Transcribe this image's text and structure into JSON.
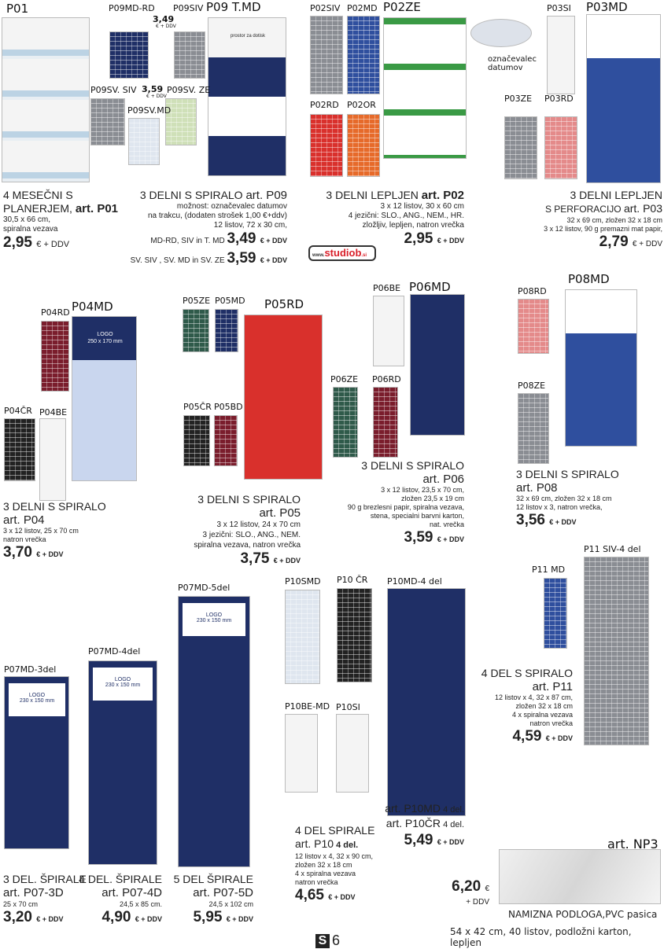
{
  "labels": {
    "p01": "P01",
    "p09mdrd": "P09MD-RD",
    "p09siv": "P09SIV",
    "p09tmd": "P09 T.MD",
    "p09svsiv": "P09SV. SIV",
    "p09svze": "P09SV. ZE",
    "p09svmd": "P09SV.MD",
    "p349": "3,49",
    "p359": "3,59",
    "ddv_small": "€ + DDV",
    "p02siv": "P02SIV",
    "p02md": "P02MD",
    "p02ze": "P02ZE",
    "p02rd": "P02RD",
    "p02or": "P02OR",
    "p03si": "P03SI",
    "p03md": "P03MD",
    "marker": "označevalec datumov",
    "p03ze": "P03ZE",
    "p03rd": "P03RD",
    "p04rd": "P04RD",
    "p04md": "P04MD",
    "p04cr": "P04ČR",
    "p04be": "P04BE",
    "p05ze": "P05ZE",
    "p05md": "P05MD",
    "p05rd": "P05RD",
    "p05cr": "P05ČR",
    "p05bd": "P05BD",
    "p06be": "P06BE",
    "p06md": "P06MD",
    "p06ze": "P06ZE",
    "p06rd": "P06RD",
    "p08rd": "P08RD",
    "p08md": "P08MD",
    "p08ze": "P08ZE",
    "p07md3": "P07MD-3del",
    "p07md4": "P07MD-4del",
    "p07md5": "P07MD-5del",
    "p10smd": "P10SMD",
    "p10cr": "P10 ČR",
    "p10md4": "P10MD-4 del",
    "p10bemd": "P10BE-MD",
    "p10si": "P10SI",
    "p11md": "P11 MD",
    "p11siv": "P11 SIV-4 del",
    "np3": "art. NP3"
  },
  "calendar_texts": {
    "logo": "LOGO",
    "logo_p04": "250 x 170 mm",
    "logo_p07": "230 x 150 mm",
    "prostor": "prostor za dotisk"
  },
  "logo": {
    "prefix": "www.",
    "name": "studiob",
    "suffix": ".si"
  },
  "products": {
    "p01": {
      "l1": "4 MESEČNI S",
      "l2": "PLANERJEM, ",
      "art": "art. P01",
      "d": [
        "30,5 x 66 cm,",
        "spiralna vezava"
      ],
      "price": "2,95",
      "unit": "€ + DDV"
    },
    "p09": {
      "title": "3 DELNI S SPIRALO ",
      "art": "art. P09",
      "d": [
        "možnost: označevalec datumov",
        "na trakcu, (dodaten  strošek 1,00 €+ddv)",
        "12 listov, 72 x 30 cm,"
      ],
      "v1": "MD-RD, SIV in T. MD ",
      "price1": "3,49",
      "v2": "SV. SIV , SV. MD in SV. ZE ",
      "price2": "3,59",
      "unit": "€ + DDV"
    },
    "p02": {
      "title": "3 DELNI LEPLJEN ",
      "art": "art. P02",
      "d": [
        "3 x 12 listov, 30 x 60 cm",
        "4 jezični: SLO., ANG., NEM., HR.",
        "zložljiv, lepljen, natron vrečka"
      ],
      "price": "2,95",
      "unit": "€ + DDV"
    },
    "p03": {
      "title": "3 DELNI LEPLJEN",
      "l2": "S PERFORACIJO ",
      "art": "art. P03",
      "d": [
        "32 x 69 cm, zložen 32 x 18 cm",
        "3 x 12 listov, 90 g premazni mat papir,"
      ],
      "price": "2,79",
      "unit": "€ + DDV"
    },
    "p04": {
      "title": "3 DELNI S SPIRALO",
      "art": "art. P04",
      "d": [
        "3 x 12 listov, 25 x 70 cm",
        "  natron vrečka"
      ],
      "price": "3,70",
      "unit": "€ + DDV"
    },
    "p05": {
      "title": "3 DELNI S SPIRALO",
      "art": "art. P05",
      "d": [
        "3 x 12 listov, 24 x 70 cm",
        "3 jezični: SLO., ANG., NEM.",
        "spiralna vezava,  natron vrečka"
      ],
      "price": "3,75",
      "unit": "€ + DDV"
    },
    "p06": {
      "title": "3 DELNI S SPIRALO",
      "art": "art. P06",
      "d": [
        "3 x 12 listov, 23,5 x 70 cm,",
        "zložen 23,5 x 19 cm",
        "90 g brezlesni papir, spiralna vezava,",
        "stena, specialni barvni karton,",
        "nat. vrečka"
      ],
      "price": "3,59",
      "unit": "€ + DDV"
    },
    "p08": {
      "title": "3 DELNI S SPIRALO",
      "art": "art. P08",
      "d": [
        "32 x 69 cm, zložen 32 x 18 cm",
        "12 listov x 3, natron vrečka,"
      ],
      "price": "3,56",
      "unit": "€ + DDV"
    },
    "p11": {
      "title": "4 DEL S SPIRALO",
      "art": "art. P11",
      "d": [
        "12 listov x 4, 32 x 87 cm,",
        "zložen 32 x 18 cm",
        "4 x spiralna vezava",
        "natron vrečka"
      ],
      "price": "4,59",
      "unit": "€ + DDV"
    },
    "p073": {
      "title": "3 DEL. ŠPIRALE",
      "art": "art. P07-3D",
      "d": "25 x 70 cm",
      "price": "3,20",
      "unit": "€ + DDV"
    },
    "p074": {
      "title": "4 DEL. ŠPIRALE",
      "art": "art. P07-4D",
      "d": "24,5 x 85 cm.",
      "price": "4,90",
      "unit": "€ + DDV"
    },
    "p075": {
      "title": "5 DEL ŠPIRALE",
      "art": "art. P07-5D",
      "d": "24,5 x 102 cm",
      "price": "5,95",
      "unit": "€ + DDV"
    },
    "p10md": {
      "a1": "art. P10MD",
      "a1s": " 4 del.",
      "a2": "art. P10ČR",
      "a2s": " 4 del.",
      "price": "5,49",
      "unit": "€ + DDV"
    },
    "p10": {
      "title": "4 DEL  SPIRALE",
      "art": "art. P10",
      "arts": " 4 del.",
      "d": [
        "12 listov x 4, 32 x 90 cm,",
        "zložen 32 x 18 cm",
        "4 x spiralna vezava",
        "natron vrečka"
      ],
      "price": "4,65",
      "unit": "€ + DDV"
    },
    "np3": {
      "price": "6,20",
      "cur": "€",
      "ddv": "+ DDV",
      "title": "NAMIZNA PODLOGA,PVC pasica",
      "d": "54 x 42 cm, 40 listov, podložni karton, lepljen"
    }
  },
  "page": {
    "letter": "S",
    "number": "6"
  }
}
